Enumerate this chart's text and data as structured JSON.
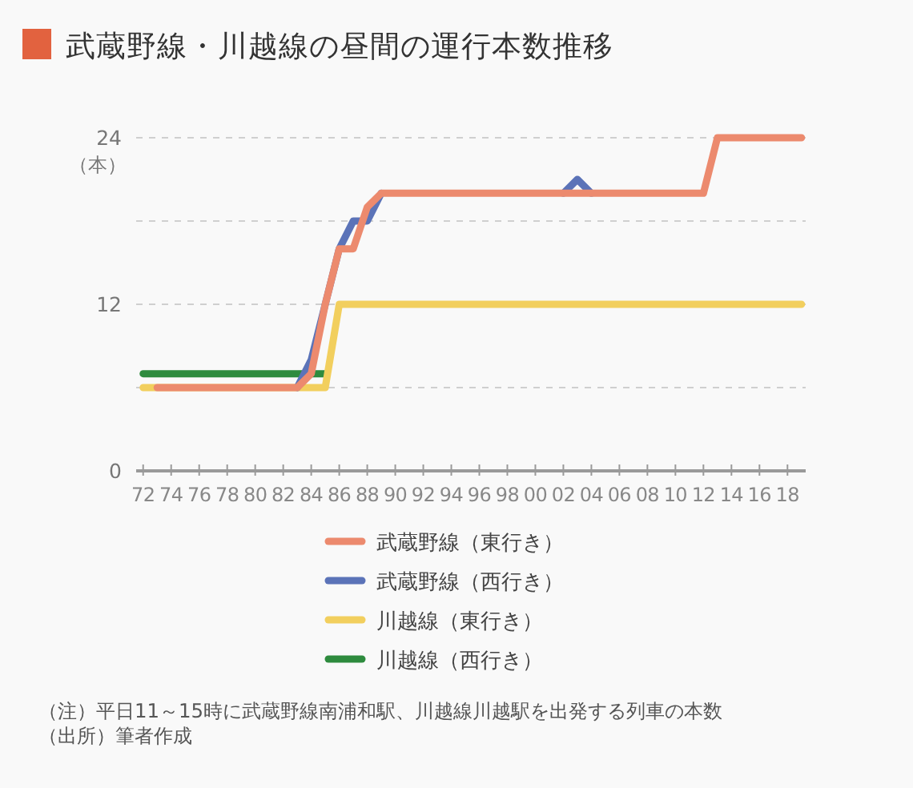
{
  "chart_data": {
    "type": "line",
    "title": "武蔵野線・川越線の昼間の運行本数推移",
    "ylabel": "（本）",
    "x": [
      1972,
      1973,
      1974,
      1975,
      1976,
      1977,
      1978,
      1979,
      1980,
      1981,
      1982,
      1983,
      1984,
      1985,
      1986,
      1987,
      1988,
      1989,
      1990,
      1991,
      1992,
      1993,
      1994,
      1995,
      1996,
      1997,
      1998,
      1999,
      2000,
      2001,
      2002,
      2003,
      2004,
      2005,
      2006,
      2007,
      2008,
      2009,
      2010,
      2011,
      2012,
      2013,
      2014,
      2015,
      2016,
      2017,
      2018,
      2019
    ],
    "xlim": [
      1971.5,
      2019.3
    ],
    "xticks": [
      {
        "value": 1972,
        "label": "72"
      },
      {
        "value": 1974,
        "label": "74"
      },
      {
        "value": 1976,
        "label": "76"
      },
      {
        "value": 1978,
        "label": "78"
      },
      {
        "value": 1980,
        "label": "80"
      },
      {
        "value": 1982,
        "label": "82"
      },
      {
        "value": 1984,
        "label": "84"
      },
      {
        "value": 1986,
        "label": "86"
      },
      {
        "value": 1988,
        "label": "88"
      },
      {
        "value": 1990,
        "label": "90"
      },
      {
        "value": 1992,
        "label": "92"
      },
      {
        "value": 1994,
        "label": "94"
      },
      {
        "value": 1996,
        "label": "96"
      },
      {
        "value": 1998,
        "label": "98"
      },
      {
        "value": 2000,
        "label": "00"
      },
      {
        "value": 2002,
        "label": "02"
      },
      {
        "value": 2004,
        "label": "04"
      },
      {
        "value": 2006,
        "label": "06"
      },
      {
        "value": 2008,
        "label": "08"
      },
      {
        "value": 2010,
        "label": "10"
      },
      {
        "value": 2012,
        "label": "12"
      },
      {
        "value": 2014,
        "label": "14"
      },
      {
        "value": 2016,
        "label": "16"
      },
      {
        "value": 2018,
        "label": "18"
      }
    ],
    "ylim": [
      0,
      24
    ],
    "yticks": [
      0,
      {
        "value": 6,
        "label": null
      },
      12,
      {
        "value": 18,
        "label": null
      },
      24
    ],
    "grid": "y",
    "legend": "bottom",
    "series": [
      {
        "name": "武蔵野線（東行き）",
        "color": "#ec8a6e",
        "values": [
          null,
          6,
          6,
          6,
          6,
          6,
          6,
          6,
          6,
          6,
          6,
          6,
          7,
          12,
          16,
          16,
          19,
          20,
          20,
          20,
          20,
          20,
          20,
          20,
          20,
          20,
          20,
          20,
          20,
          20,
          20,
          20,
          20,
          20,
          20,
          20,
          20,
          20,
          20,
          20,
          20,
          24,
          24,
          24,
          24,
          24,
          24,
          24
        ]
      },
      {
        "name": "武蔵野線（西行き）",
        "color": "#5b73b8",
        "values": [
          null,
          null,
          null,
          null,
          null,
          null,
          null,
          null,
          null,
          null,
          null,
          6,
          8,
          12,
          16,
          18,
          18,
          20,
          null,
          null,
          null,
          null,
          null,
          null,
          null,
          null,
          null,
          null,
          null,
          null,
          20,
          21,
          20,
          null,
          null,
          null,
          null,
          null,
          null,
          null,
          null,
          null,
          null,
          null,
          null,
          null,
          null,
          null
        ]
      },
      {
        "name": "川越線（東行き）",
        "color": "#f2cf5e",
        "values": [
          6,
          6,
          6,
          6,
          6,
          6,
          6,
          6,
          6,
          6,
          6,
          6,
          6,
          6,
          12,
          12,
          12,
          12,
          12,
          12,
          12,
          12,
          12,
          12,
          12,
          12,
          12,
          12,
          12,
          12,
          12,
          12,
          12,
          12,
          12,
          12,
          12,
          12,
          12,
          12,
          12,
          12,
          12,
          12,
          12,
          12,
          12,
          12
        ]
      },
      {
        "name": "川越線（西行き）",
        "color": "#2e8b3e",
        "values": [
          7,
          7,
          7,
          7,
          7,
          7,
          7,
          7,
          7,
          7,
          7,
          7,
          7,
          7,
          null,
          null,
          null,
          null,
          null,
          null,
          null,
          null,
          null,
          null,
          null,
          null,
          null,
          null,
          null,
          null,
          null,
          null,
          null,
          null,
          null,
          null,
          null,
          null,
          null,
          null,
          null,
          null,
          null,
          null,
          null,
          null,
          null,
          null
        ]
      }
    ],
    "annotations": [
      "（注）平日11～15時に武蔵野線南浦和駅、川越線川越駅を出発する列車の本数",
      "（出所）筆者作成"
    ]
  }
}
